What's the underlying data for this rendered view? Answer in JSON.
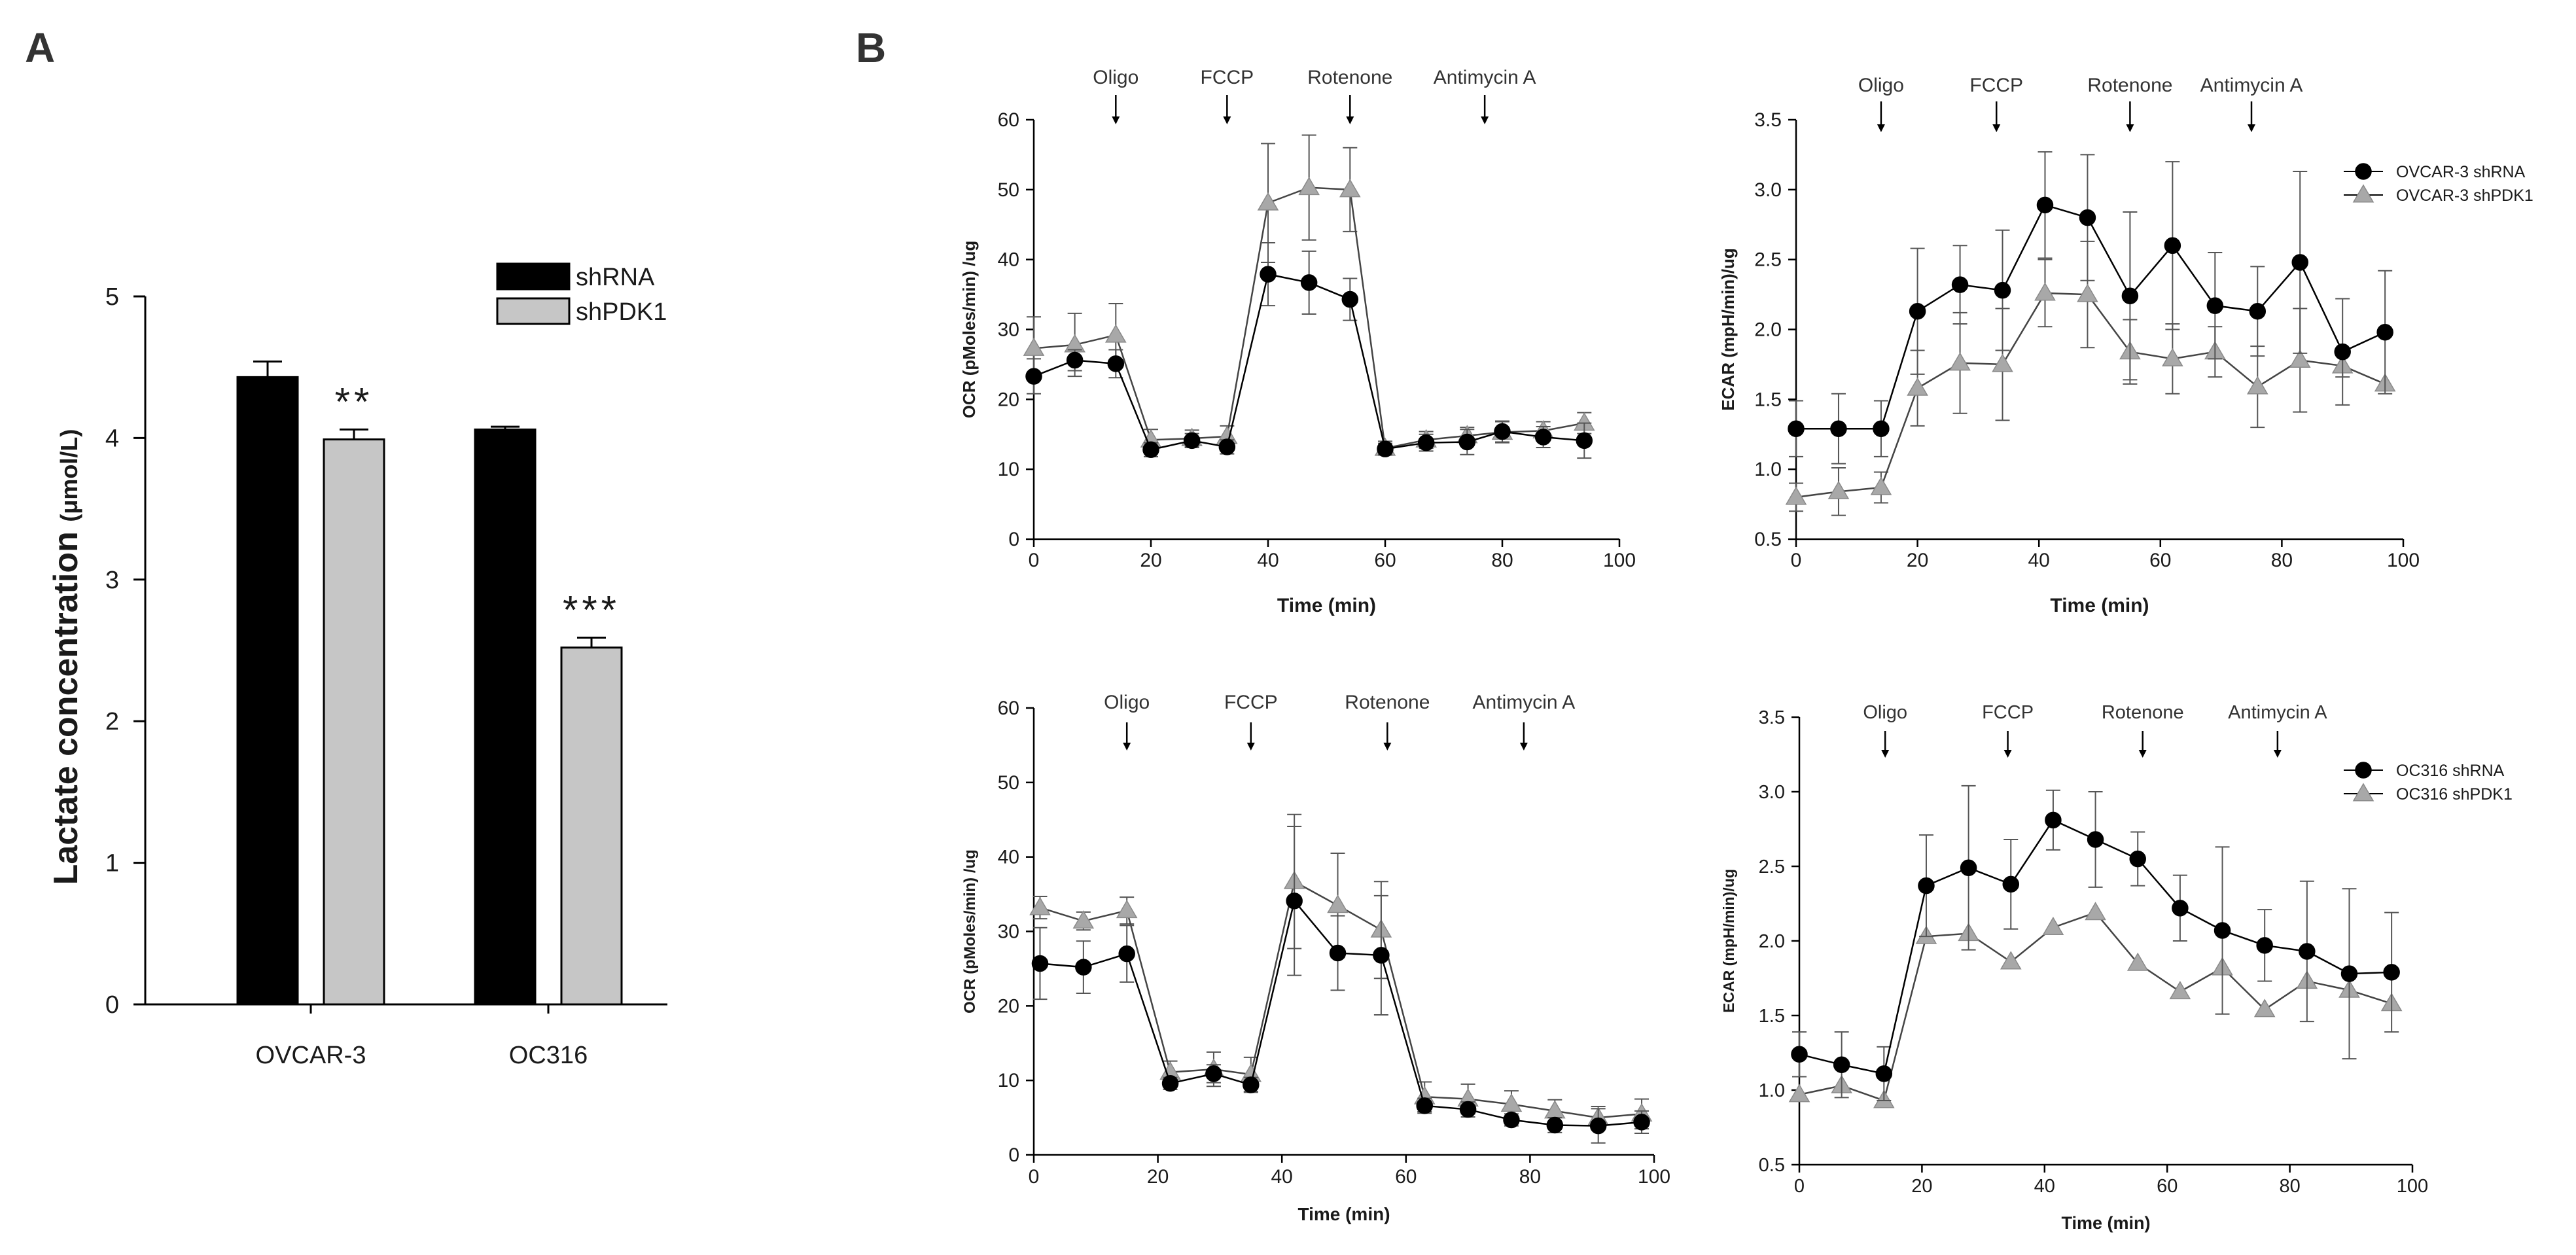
{
  "panels": {
    "a": "A",
    "b": "B"
  },
  "chart_data": [
    {
      "id": "A",
      "type": "bar",
      "categories": [
        "OVCAR-3",
        "OC316"
      ],
      "series": [
        {
          "name": "shRNA",
          "color": "#000000",
          "values": [
            4.43,
            4.06
          ],
          "errors": [
            0.11,
            0.02
          ]
        },
        {
          "name": "shPDK1",
          "color": "#c6c6c6",
          "values": [
            3.99,
            2.52
          ],
          "errors": [
            0.07,
            0.07
          ]
        }
      ],
      "significance": [
        "**",
        "***"
      ],
      "ylabel": "Lactate concentration",
      "ylabel_unit": "(μmol/L)",
      "xlabel": "",
      "ylim": [
        0,
        5
      ],
      "yticks": [
        0,
        1,
        2,
        3,
        4,
        5
      ],
      "legend": "top-right"
    },
    {
      "id": "B1",
      "type": "line",
      "ylabel": "OCR (pMoles/min) /ug",
      "xlabel": "Time (min)",
      "xlim": [
        0,
        100
      ],
      "xticks": [
        0,
        20,
        40,
        60,
        80,
        100
      ],
      "ylim": [
        0,
        60
      ],
      "yticks": [
        0,
        10,
        20,
        30,
        40,
        50,
        60
      ],
      "injections": [
        {
          "label": "Oligo",
          "time": 14
        },
        {
          "label": "FCCP",
          "time": 33
        },
        {
          "label": "Rotenone",
          "time": 54
        },
        {
          "label": "Antimycin A",
          "time": 77
        }
      ],
      "series": [
        {
          "name": "OVCAR-3 shRNA",
          "marker": "circle",
          "color": "#000000",
          "x": [
            0,
            7,
            14,
            20,
            27,
            33,
            40,
            47,
            54,
            60,
            67,
            74,
            80,
            87,
            94
          ],
          "y": [
            23.3,
            25.6,
            25.1,
            12.8,
            14.1,
            13.2,
            37.9,
            36.7,
            34.3,
            12.9,
            13.8,
            13.9,
            15.4,
            14.6,
            14.1
          ],
          "err": [
            2.5,
            1.5,
            2.0,
            1.0,
            1.0,
            1.0,
            4.5,
            4.5,
            3.0,
            0.8,
            1.2,
            1.8,
            1.5,
            1.5,
            2.5
          ]
        },
        {
          "name": "OVCAR-3 shPDK1",
          "marker": "triangle",
          "color": "#a8a8a8",
          "x": [
            0,
            7,
            14,
            20,
            27,
            33,
            40,
            47,
            54,
            60,
            67,
            74,
            80,
            87,
            94
          ],
          "y": [
            27.3,
            27.8,
            29.2,
            14.2,
            14.4,
            14.7,
            48.1,
            50.3,
            50.0,
            13.0,
            14.2,
            14.8,
            15.3,
            15.5,
            16.6
          ],
          "err": [
            4.5,
            4.5,
            4.5,
            1.5,
            1.2,
            1.5,
            8.5,
            7.5,
            6.0,
            1.0,
            1.2,
            1.2,
            1.5,
            1.3,
            1.5
          ]
        }
      ]
    },
    {
      "id": "B2",
      "type": "line",
      "ylabel": "ECAR (mpH/min)/ug",
      "xlabel": "Time (min)",
      "xlim": [
        0,
        100
      ],
      "xticks": [
        0,
        20,
        40,
        60,
        80,
        100
      ],
      "ylim": [
        0.5,
        3.5
      ],
      "yticks": [
        0.5,
        1.0,
        1.5,
        2.0,
        2.5,
        3.0,
        3.5
      ],
      "injections": [
        {
          "label": "Oligo",
          "time": 14
        },
        {
          "label": "FCCP",
          "time": 33
        },
        {
          "label": "Rotenone",
          "time": 55
        },
        {
          "label": "Antimycin A",
          "time": 75
        }
      ],
      "legend": "top-right",
      "series": [
        {
          "name": "OVCAR-3 shRNA",
          "marker": "circle",
          "color": "#000000",
          "x": [
            0,
            7,
            14,
            20,
            27,
            34,
            41,
            48,
            55,
            62,
            69,
            76,
            83,
            90,
            97
          ],
          "y": [
            1.29,
            1.29,
            1.29,
            2.13,
            2.32,
            2.28,
            2.89,
            2.8,
            2.24,
            2.6,
            2.17,
            2.13,
            2.48,
            1.84,
            1.98
          ],
          "err": [
            0.2,
            0.25,
            0.2,
            0.45,
            0.28,
            0.43,
            0.38,
            0.45,
            0.6,
            0.6,
            0.38,
            0.32,
            0.65,
            0.38,
            0.44
          ]
        },
        {
          "name": "OVCAR-3 shPDK1",
          "marker": "triangle",
          "color": "#a8a8a8",
          "x": [
            0,
            7,
            14,
            20,
            27,
            34,
            41,
            48,
            55,
            62,
            69,
            76,
            83,
            90,
            97
          ],
          "y": [
            0.8,
            0.84,
            0.87,
            1.58,
            1.76,
            1.75,
            2.26,
            2.25,
            1.84,
            1.79,
            1.84,
            1.59,
            1.78,
            1.74,
            1.61
          ],
          "err": [
            0.1,
            0.17,
            0.11,
            0.27,
            0.36,
            0.4,
            0.24,
            0.38,
            0.23,
            0.25,
            0.18,
            0.29,
            0.37,
            0.08,
            0.0
          ]
        }
      ]
    },
    {
      "id": "B3",
      "type": "line",
      "ylabel": "OCR (pMoles/min) /ug",
      "xlabel": "Time (min)",
      "xlim": [
        0,
        100
      ],
      "xticks": [
        0,
        20,
        40,
        60,
        80,
        100
      ],
      "ylim": [
        0,
        60
      ],
      "yticks": [
        0,
        10,
        20,
        30,
        40,
        50,
        60
      ],
      "injections": [
        {
          "label": "Oligo",
          "time": 15
        },
        {
          "label": "FCCP",
          "time": 35
        },
        {
          "label": "Rotenone",
          "time": 57
        },
        {
          "label": "Antimycin A",
          "time": 79
        }
      ],
      "series": [
        {
          "name": "OC316 shRNA",
          "marker": "circle",
          "color": "#000000",
          "x": [
            1,
            8,
            15,
            22,
            29,
            35,
            42,
            49,
            56,
            63,
            70,
            77,
            84,
            91,
            98
          ],
          "y": [
            25.7,
            25.2,
            27.0,
            9.6,
            10.9,
            9.4,
            34.1,
            27.1,
            26.8,
            6.6,
            6.1,
            4.7,
            4.0,
            3.9,
            4.4
          ],
          "err": [
            4.8,
            3.5,
            3.8,
            0.8,
            1.2,
            1.0,
            10.0,
            5.0,
            8.0,
            1.0,
            1.0,
            0.8,
            1.0,
            2.3,
            1.5
          ]
        },
        {
          "name": "OC316 shPDK1",
          "marker": "triangle",
          "color": "#a8a8a8",
          "x": [
            1,
            8,
            15,
            22,
            29,
            35,
            42,
            49,
            56,
            63,
            70,
            77,
            84,
            91,
            98
          ],
          "y": [
            33.2,
            31.4,
            32.8,
            11.1,
            11.5,
            10.8,
            36.7,
            33.5,
            30.2,
            7.8,
            7.5,
            6.8,
            5.9,
            5.0,
            5.5
          ],
          "err": [
            1.5,
            1.2,
            1.8,
            1.5,
            2.3,
            2.3,
            9.0,
            7.0,
            6.5,
            2.0,
            2.0,
            1.8,
            1.5,
            1.5,
            2.0
          ]
        }
      ]
    },
    {
      "id": "B4",
      "type": "line",
      "ylabel": "ECAR (mpH/min)/ug",
      "xlabel": "Time (min)",
      "xlim": [
        0,
        100
      ],
      "xticks": [
        0,
        20,
        40,
        60,
        80,
        100
      ],
      "ylim": [
        0.5,
        3.5
      ],
      "yticks": [
        0.5,
        1.0,
        1.5,
        2.0,
        2.5,
        3.0,
        3.5
      ],
      "injections": [
        {
          "label": "Oligo",
          "time": 14
        },
        {
          "label": "FCCP",
          "time": 34
        },
        {
          "label": "Rotenone",
          "time": 56
        },
        {
          "label": "Antimycin A",
          "time": 78
        }
      ],
      "legend": "top-right",
      "series": [
        {
          "name": "OC316 shRNA",
          "marker": "circle",
          "color": "#000000",
          "x": [
            0,
            6.9,
            13.8,
            20.7,
            27.6,
            34.5,
            41.4,
            48.3,
            55.2,
            62.1,
            69,
            75.9,
            82.8,
            89.7,
            96.6
          ],
          "y": [
            1.24,
            1.17,
            1.11,
            2.37,
            2.49,
            2.38,
            2.81,
            2.68,
            2.55,
            2.22,
            2.07,
            1.97,
            1.93,
            1.78,
            1.79
          ],
          "err": [
            0.15,
            0.22,
            0.18,
            0.34,
            0.55,
            0.3,
            0.2,
            0.32,
            0.18,
            0.22,
            0.56,
            0.24,
            0.47,
            0.57,
            0.4
          ]
        },
        {
          "name": "OC316 shPDK1",
          "marker": "triangle",
          "color": "#a8a8a8",
          "x": [
            0,
            6.9,
            13.8,
            20.7,
            27.6,
            34.5,
            41.4,
            48.3,
            55.2,
            62.1,
            69,
            75.9,
            82.8,
            89.7,
            96.6
          ],
          "y": [
            0.97,
            1.03,
            0.93,
            2.03,
            2.05,
            1.86,
            2.09,
            2.19,
            1.85,
            1.66,
            1.82,
            1.54,
            1.73,
            1.67,
            1.58
          ],
          "err": [
            0.0,
            0.0,
            0.0,
            0.0,
            0.0,
            0.0,
            0.0,
            0.0,
            0.0,
            0.0,
            0.0,
            0.0,
            0.0,
            0.0,
            0.0
          ]
        }
      ]
    }
  ]
}
